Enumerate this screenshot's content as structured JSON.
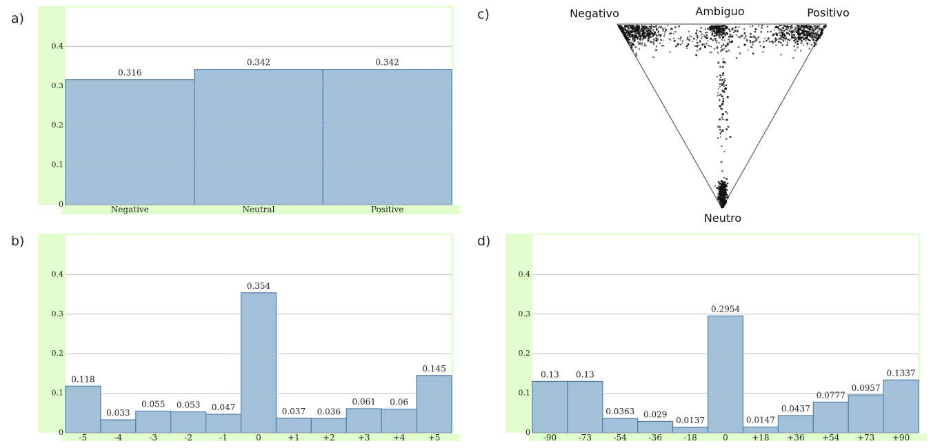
{
  "labels": {
    "a": "a)",
    "b": "b)",
    "c": "c)",
    "d": "d)"
  },
  "colors": {
    "bar_fill": "#a3c0d9",
    "bar_stroke": "#4f7ea8",
    "frame_green": "#e0ffcc",
    "grid": "#c8c8c8"
  },
  "chart_data": [
    {
      "id": "a",
      "type": "bar",
      "categories": [
        "Negative",
        "Neutral",
        "Positive"
      ],
      "values": [
        0.316,
        0.342,
        0.342
      ],
      "value_labels": [
        "0.316",
        "0.342",
        "0.342"
      ],
      "yticks": [
        "0",
        "0.1",
        "0.2",
        "0.3",
        "0.4"
      ],
      "ylim": [
        0,
        0.5
      ],
      "grid": true
    },
    {
      "id": "b",
      "type": "bar",
      "categories": [
        "-5",
        "-4",
        "-3",
        "-2",
        "-1",
        "0",
        "+1",
        "+2",
        "+3",
        "+4",
        "+5"
      ],
      "values": [
        0.118,
        0.033,
        0.055,
        0.053,
        0.047,
        0.354,
        0.037,
        0.036,
        0.061,
        0.06,
        0.145
      ],
      "value_labels": [
        "0.118",
        "0.033",
        "0.055",
        "0.053",
        "0.047",
        "0.354",
        "0.037",
        "0.036",
        "0.061",
        "0.06",
        "0.145"
      ],
      "yticks": [
        "0",
        "0.1",
        "0.2",
        "0.3",
        "0.4"
      ],
      "ylim": [
        0,
        0.5
      ],
      "grid": true
    },
    {
      "id": "c",
      "type": "scatter",
      "corner_labels": {
        "left": "Negativo",
        "top": "Ambiguo",
        "right": "Positivo",
        "bottom": "Neutro"
      },
      "clusters": [
        {
          "name": "negativo-corner",
          "u": 0.08,
          "v": 0.04,
          "su": 0.07,
          "sv": 0.03,
          "n": 420
        },
        {
          "name": "positivo-corner",
          "u": 0.88,
          "v": 0.04,
          "su": 0.07,
          "sv": 0.03,
          "n": 380
        },
        {
          "name": "ambiguo-top",
          "u": 0.48,
          "v": 0.02,
          "su": 0.025,
          "sv": 0.02,
          "n": 160
        },
        {
          "name": "top-spread",
          "u": 0.5,
          "v": 0.08,
          "su": 0.25,
          "sv": 0.04,
          "n": 260
        },
        {
          "name": "center-spine",
          "u": 0.5,
          "v": 0.4,
          "su": 0.015,
          "sv": 0.15,
          "n": 90
        },
        {
          "name": "neutro-corner",
          "u": 0.5,
          "v": 0.92,
          "su": 0.01,
          "sv": 0.04,
          "n": 330
        }
      ]
    },
    {
      "id": "d",
      "type": "bar",
      "categories": [
        "-90",
        "-73",
        "-54",
        "-36",
        "-18",
        "0",
        "+18",
        "+36",
        "+54",
        "+73",
        "+90"
      ],
      "values": [
        0.13,
        0.13,
        0.0363,
        0.029,
        0.0137,
        0.2954,
        0.0147,
        0.0437,
        0.0777,
        0.0957,
        0.1337
      ],
      "value_labels": [
        "0.13",
        "0.13",
        "0.0363",
        "0.029",
        "0.0137",
        "0.2954",
        "0.0147",
        "0.0437",
        "0.0777",
        "0.0957",
        "0.1337"
      ],
      "yticks": [
        "0",
        "0.1",
        "0.2",
        "0.3",
        "0.4"
      ],
      "ylim": [
        0,
        0.5
      ],
      "grid": true
    }
  ]
}
